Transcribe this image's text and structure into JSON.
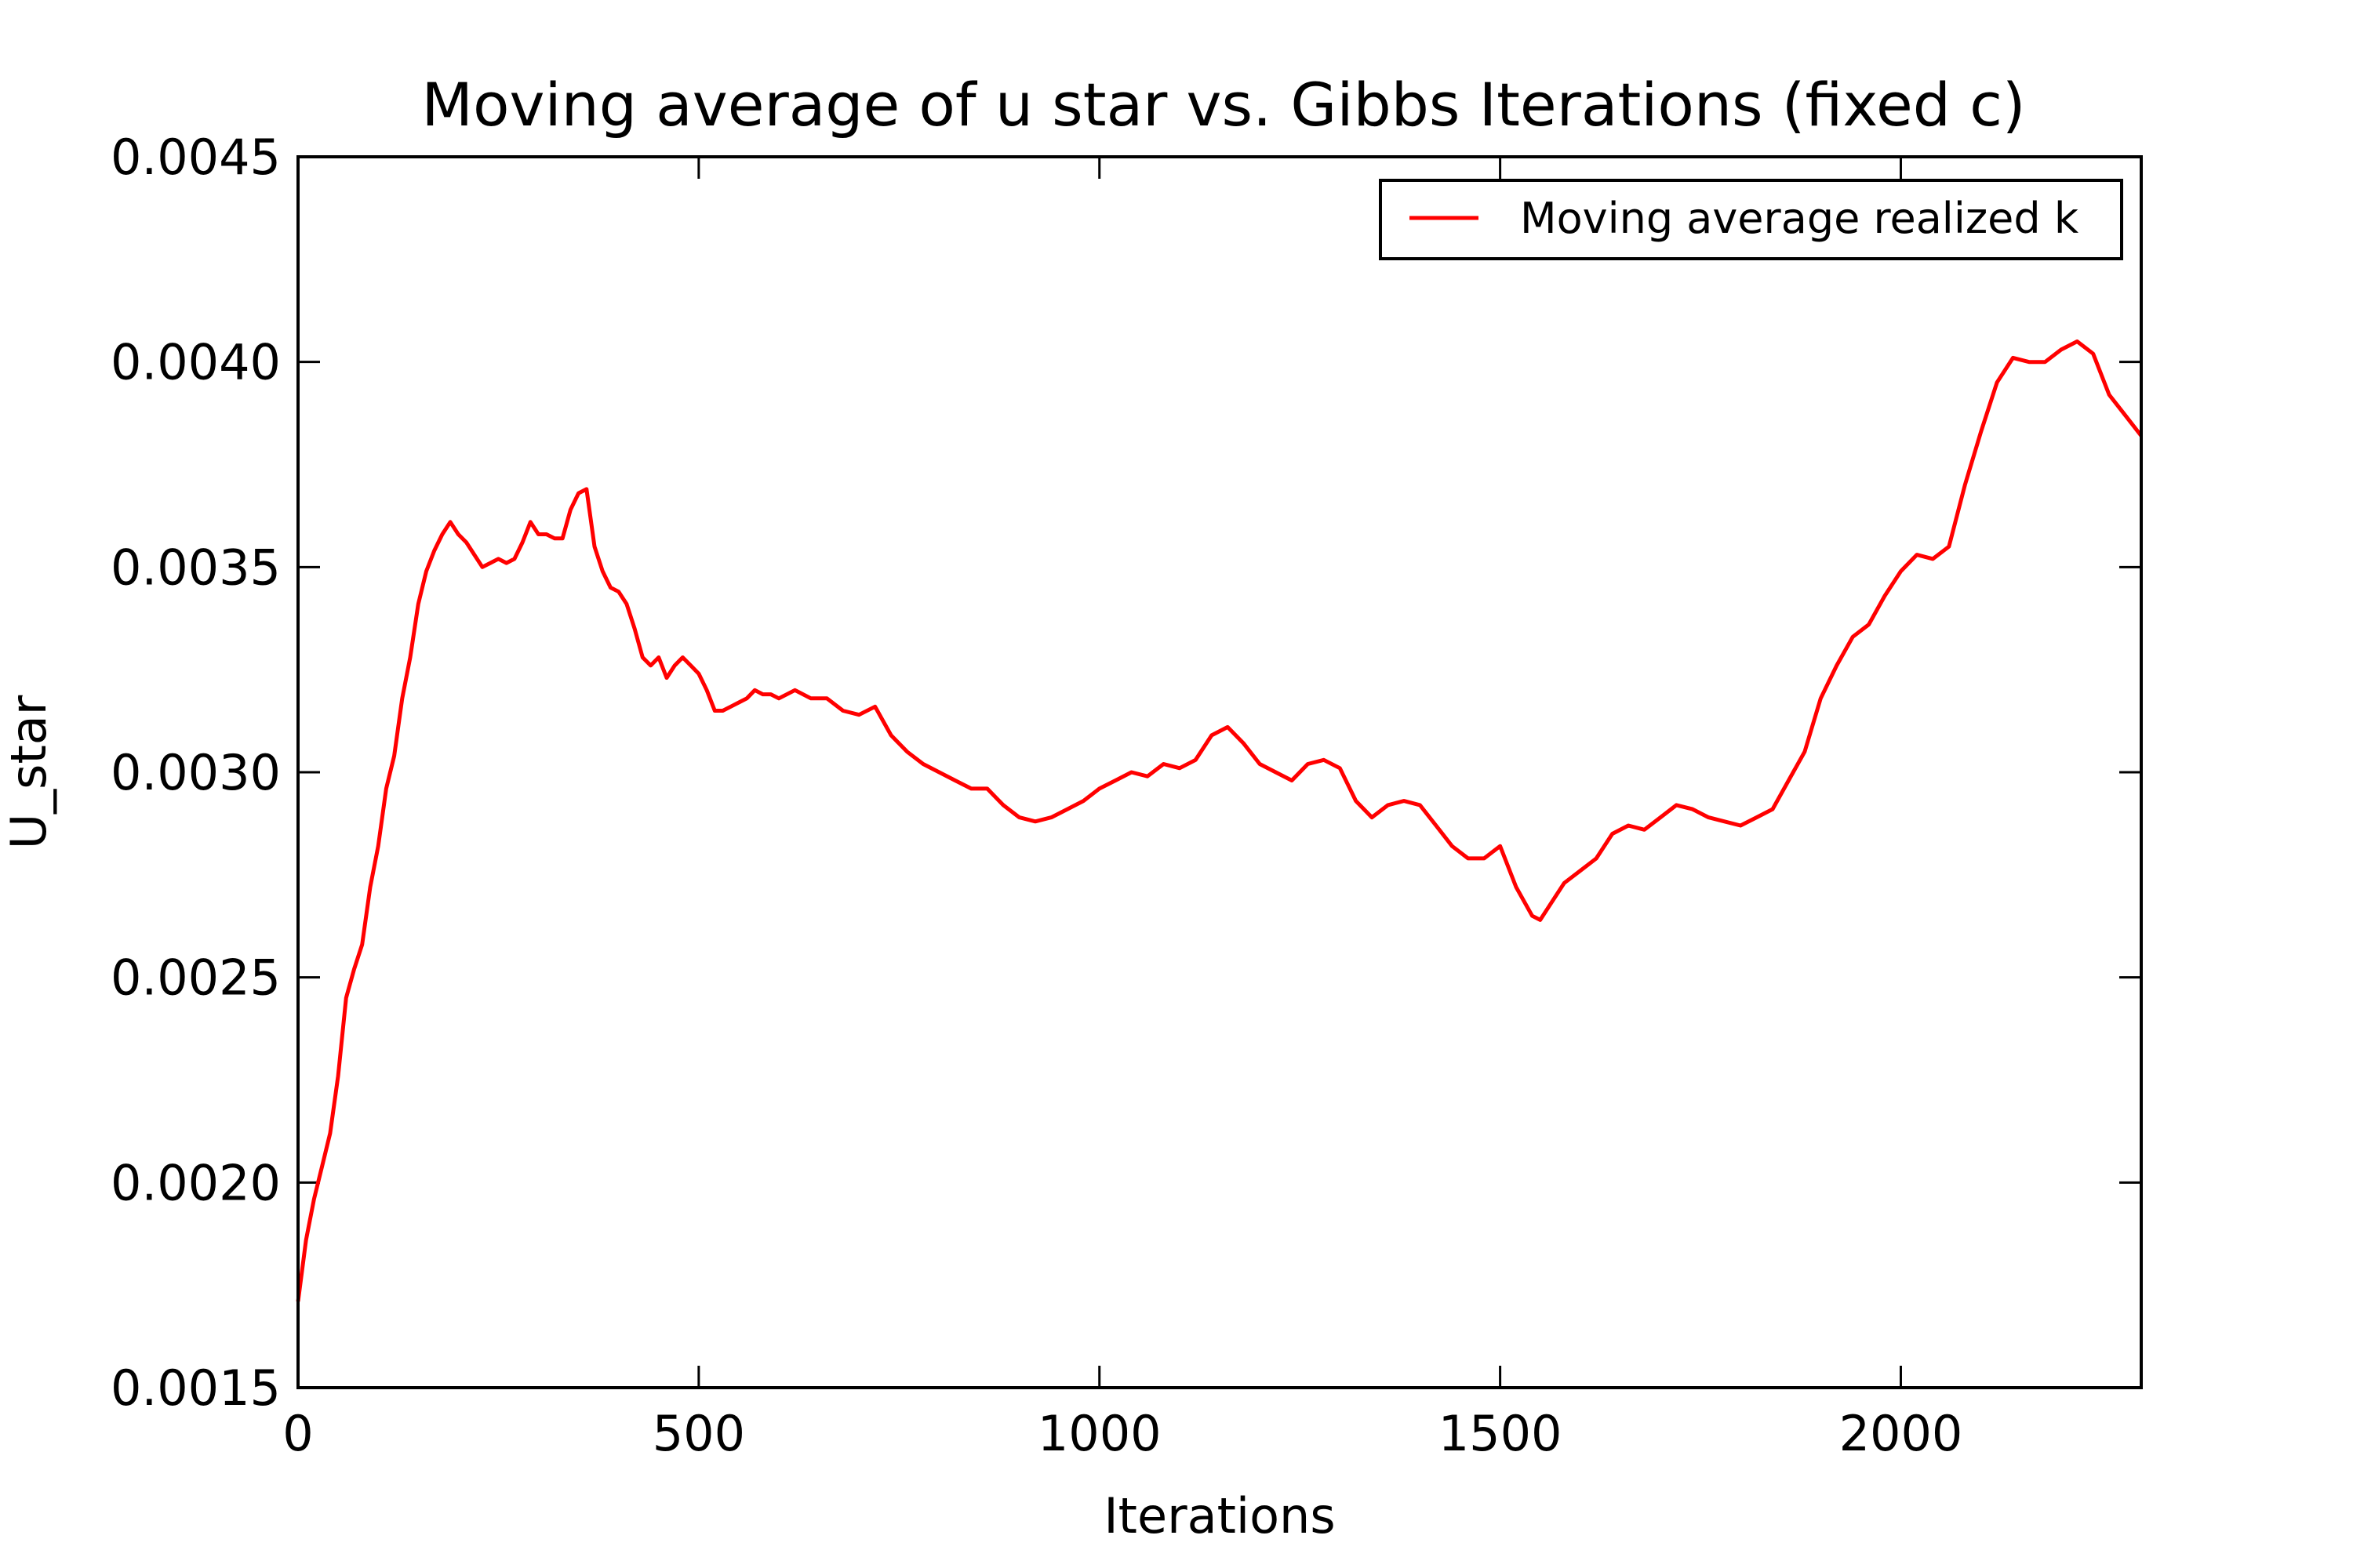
{
  "chart_data": {
    "type": "line",
    "title": "Moving average of u star vs. Gibbs Iterations (fixed c)",
    "xlabel": "Iterations",
    "ylabel": "U_star",
    "xlim": [
      0,
      2300
    ],
    "ylim": [
      0.0015,
      0.0045
    ],
    "xticks": [
      0,
      500,
      1000,
      1500,
      2000
    ],
    "xtick_labels": [
      "0",
      "500",
      "1000",
      "1500",
      "2000"
    ],
    "yticks": [
      0.0015,
      0.002,
      0.0025,
      0.003,
      0.0035,
      0.004,
      0.0045
    ],
    "ytick_labels": [
      "0.0015",
      "0.0020",
      "0.0025",
      "0.0030",
      "0.0035",
      "0.0040",
      "0.0045"
    ],
    "grid": false,
    "legend_position": "top-right",
    "series": [
      {
        "name": "Moving average realized k",
        "color": "#ff0000",
        "x": [
          0,
          10,
          20,
          30,
          40,
          50,
          60,
          70,
          80,
          90,
          100,
          110,
          120,
          130,
          140,
          150,
          160,
          170,
          180,
          190,
          200,
          210,
          220,
          230,
          240,
          250,
          260,
          270,
          280,
          290,
          300,
          310,
          320,
          330,
          340,
          350,
          360,
          370,
          380,
          390,
          400,
          410,
          420,
          430,
          440,
          450,
          460,
          470,
          480,
          490,
          500,
          510,
          520,
          530,
          540,
          550,
          560,
          570,
          580,
          590,
          600,
          620,
          640,
          660,
          680,
          700,
          720,
          740,
          760,
          780,
          800,
          820,
          840,
          860,
          880,
          900,
          920,
          940,
          960,
          980,
          1000,
          1020,
          1040,
          1060,
          1080,
          1100,
          1120,
          1140,
          1160,
          1180,
          1200,
          1220,
          1240,
          1260,
          1280,
          1300,
          1320,
          1340,
          1360,
          1380,
          1400,
          1420,
          1440,
          1460,
          1480,
          1500,
          1520,
          1540,
          1550,
          1560,
          1580,
          1600,
          1620,
          1640,
          1660,
          1680,
          1700,
          1720,
          1740,
          1760,
          1780,
          1800,
          1820,
          1840,
          1860,
          1880,
          1900,
          1920,
          1940,
          1960,
          1980,
          2000,
          2020,
          2040,
          2060,
          2080,
          2100,
          2120,
          2140,
          2160,
          2180,
          2200,
          2220,
          2240,
          2260,
          2280,
          2300
        ],
        "y": [
          0.00171,
          0.00186,
          0.00196,
          0.00204,
          0.00212,
          0.00226,
          0.00245,
          0.00252,
          0.00258,
          0.00272,
          0.00282,
          0.00296,
          0.00304,
          0.00318,
          0.00328,
          0.00341,
          0.00349,
          0.00354,
          0.00358,
          0.00361,
          0.00358,
          0.00356,
          0.00353,
          0.0035,
          0.00351,
          0.00352,
          0.00351,
          0.00352,
          0.00356,
          0.00361,
          0.00358,
          0.00358,
          0.00357,
          0.00357,
          0.00364,
          0.00368,
          0.00369,
          0.00355,
          0.00349,
          0.00345,
          0.00344,
          0.00341,
          0.00335,
          0.00328,
          0.00326,
          0.00328,
          0.00323,
          0.00326,
          0.00328,
          0.00326,
          0.00324,
          0.0032,
          0.00315,
          0.00315,
          0.00316,
          0.00317,
          0.00318,
          0.0032,
          0.00319,
          0.00319,
          0.00318,
          0.0032,
          0.00318,
          0.00318,
          0.00315,
          0.00314,
          0.00316,
          0.00309,
          0.00305,
          0.00302,
          0.003,
          0.00298,
          0.00296,
          0.00296,
          0.00292,
          0.00289,
          0.00288,
          0.00289,
          0.00291,
          0.00293,
          0.00296,
          0.00298,
          0.003,
          0.00299,
          0.00302,
          0.00301,
          0.00303,
          0.00309,
          0.00311,
          0.00307,
          0.00302,
          0.003,
          0.00298,
          0.00302,
          0.00303,
          0.00301,
          0.00293,
          0.00289,
          0.00292,
          0.00293,
          0.00292,
          0.00287,
          0.00282,
          0.00279,
          0.00279,
          0.00282,
          0.00272,
          0.00265,
          0.00264,
          0.00267,
          0.00273,
          0.00276,
          0.00279,
          0.00285,
          0.00287,
          0.00286,
          0.00289,
          0.00292,
          0.00291,
          0.00289,
          0.00288,
          0.00287,
          0.00289,
          0.00291,
          0.00298,
          0.00305,
          0.00318,
          0.00326,
          0.00333,
          0.00336,
          0.00343,
          0.00349,
          0.00353,
          0.00352,
          0.00355,
          0.0037,
          0.00383,
          0.00395,
          0.00401,
          0.004,
          0.004,
          0.00403,
          0.00405,
          0.00402,
          0.00392,
          0.00387,
          0.00382
        ]
      }
    ]
  }
}
